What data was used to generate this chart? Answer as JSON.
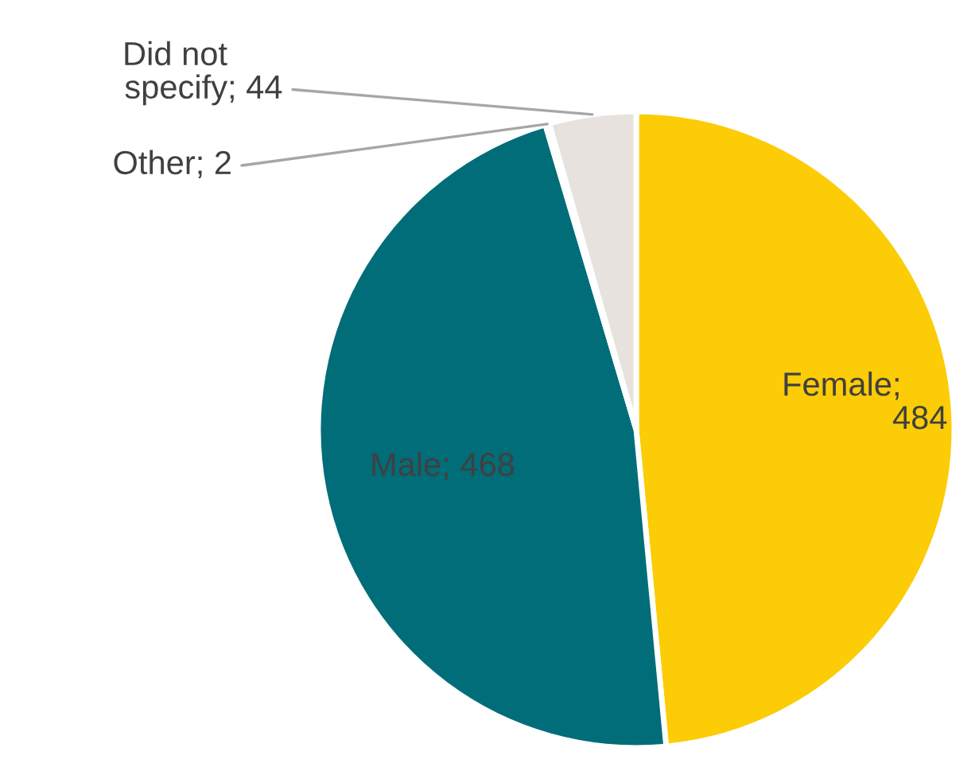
{
  "chart_data": {
    "type": "pie",
    "categories": [
      "Female",
      "Male",
      "Other",
      "Did not specify"
    ],
    "values": [
      484,
      468,
      2,
      44
    ],
    "colors": [
      "#fccc06",
      "#006d79",
      "#9a9a9a",
      "#e8e2de"
    ],
    "value_labels": [
      ";\n484",
      "; 468",
      "; 2",
      "; 44"
    ],
    "legend": false
  }
}
